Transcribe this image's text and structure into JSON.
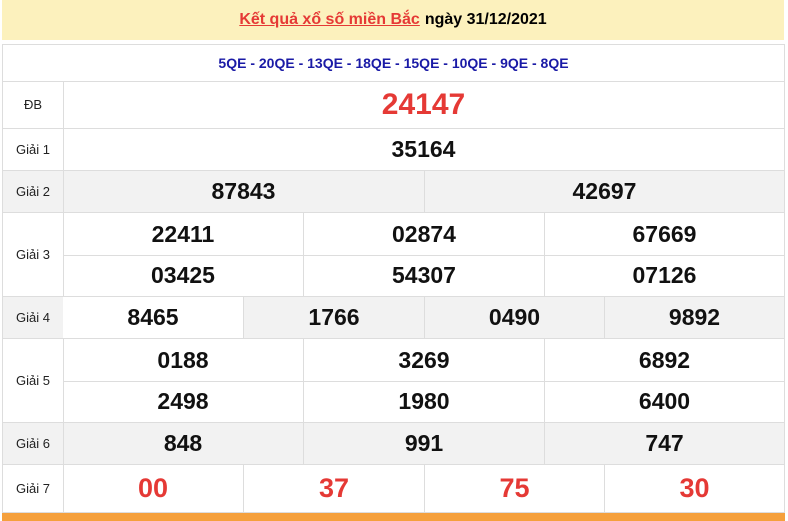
{
  "header": {
    "title_link": "Kết quả xổ số miền Bắc",
    "date_text": "ngày 31/12/2021"
  },
  "codes": "5QE - 20QE - 13QE - 18QE - 15QE - 10QE - 9QE - 8QE",
  "prizes": {
    "db": {
      "label": "ĐB",
      "numbers": [
        "24147"
      ]
    },
    "g1": {
      "label": "Giải 1",
      "numbers": [
        "35164"
      ]
    },
    "g2": {
      "label": "Giải 2",
      "numbers": [
        "87843",
        "42697"
      ]
    },
    "g3": {
      "label": "Giải 3",
      "numbers": [
        "22411",
        "02874",
        "67669",
        "03425",
        "54307",
        "07126"
      ]
    },
    "g4": {
      "label": "Giải 4",
      "numbers": [
        "8465",
        "1766",
        "0490",
        "9892"
      ]
    },
    "g5": {
      "label": "Giải 5",
      "numbers": [
        "0188",
        "3269",
        "6892",
        "2498",
        "1980",
        "6400"
      ]
    },
    "g6": {
      "label": "Giải 6",
      "numbers": [
        "848",
        "991",
        "747"
      ]
    },
    "g7": {
      "label": "Giải 7",
      "numbers": [
        "00",
        "37",
        "75",
        "30"
      ]
    }
  },
  "colors": {
    "accent_red": "#e53935",
    "code_blue": "#1a1aa6",
    "header_bg": "#fcf1bd",
    "footer_bar": "#f5a03c"
  }
}
